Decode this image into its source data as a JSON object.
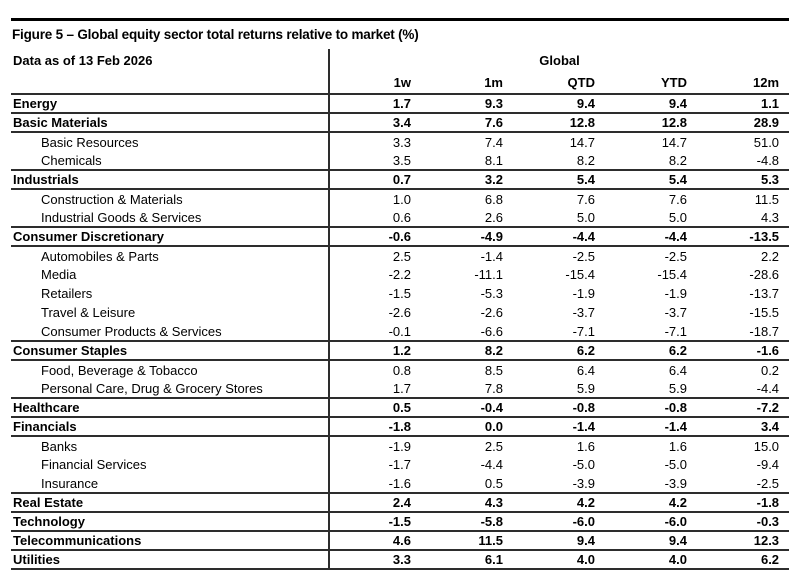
{
  "figure": {
    "title": "Figure 5 – Global equity sector total returns relative to market (%)",
    "data_as_of": "Data as of 13 Feb 2026",
    "region_header": "Global"
  },
  "colors": {
    "text": "#000000",
    "rule": "#2d2d2d",
    "background": "#ffffff"
  },
  "table": {
    "columns": [
      "1w",
      "1m",
      "QTD",
      "YTD",
      "12m"
    ],
    "rows": [
      {
        "label": "Energy",
        "level": "sector",
        "values": [
          "1.7",
          "9.3",
          "9.4",
          "9.4",
          "1.1"
        ]
      },
      {
        "label": "Basic Materials",
        "level": "sector",
        "values": [
          "3.4",
          "7.6",
          "12.8",
          "12.8",
          "28.9"
        ]
      },
      {
        "label": "Basic Resources",
        "level": "sub",
        "values": [
          "3.3",
          "7.4",
          "14.7",
          "14.7",
          "51.0"
        ]
      },
      {
        "label": "Chemicals",
        "level": "sub",
        "values": [
          "3.5",
          "8.1",
          "8.2",
          "8.2",
          "-4.8"
        ]
      },
      {
        "label": "Industrials",
        "level": "sector",
        "values": [
          "0.7",
          "3.2",
          "5.4",
          "5.4",
          "5.3"
        ]
      },
      {
        "label": "Construction & Materials",
        "level": "sub",
        "values": [
          "1.0",
          "6.8",
          "7.6",
          "7.6",
          "11.5"
        ]
      },
      {
        "label": "Industrial Goods & Services",
        "level": "sub",
        "values": [
          "0.6",
          "2.6",
          "5.0",
          "5.0",
          "4.3"
        ]
      },
      {
        "label": "Consumer Discretionary",
        "level": "sector",
        "values": [
          "-0.6",
          "-4.9",
          "-4.4",
          "-4.4",
          "-13.5"
        ]
      },
      {
        "label": "Automobiles & Parts",
        "level": "sub",
        "values": [
          "2.5",
          "-1.4",
          "-2.5",
          "-2.5",
          "2.2"
        ]
      },
      {
        "label": "Media",
        "level": "sub",
        "values": [
          "-2.2",
          "-11.1",
          "-15.4",
          "-15.4",
          "-28.6"
        ]
      },
      {
        "label": "Retailers",
        "level": "sub",
        "values": [
          "-1.5",
          "-5.3",
          "-1.9",
          "-1.9",
          "-13.7"
        ]
      },
      {
        "label": "Travel & Leisure",
        "level": "sub",
        "values": [
          "-2.6",
          "-2.6",
          "-3.7",
          "-3.7",
          "-15.5"
        ]
      },
      {
        "label": "Consumer Products & Services",
        "level": "sub",
        "values": [
          "-0.1",
          "-6.6",
          "-7.1",
          "-7.1",
          "-18.7"
        ]
      },
      {
        "label": "Consumer Staples",
        "level": "sector",
        "values": [
          "1.2",
          "8.2",
          "6.2",
          "6.2",
          "-1.6"
        ]
      },
      {
        "label": "Food, Beverage & Tobacco",
        "level": "sub",
        "values": [
          "0.8",
          "8.5",
          "6.4",
          "6.4",
          "0.2"
        ]
      },
      {
        "label": "Personal Care, Drug & Grocery Stores",
        "level": "sub",
        "values": [
          "1.7",
          "7.8",
          "5.9",
          "5.9",
          "-4.4"
        ]
      },
      {
        "label": "Healthcare",
        "level": "sector",
        "values": [
          "0.5",
          "-0.4",
          "-0.8",
          "-0.8",
          "-7.2"
        ]
      },
      {
        "label": "Financials",
        "level": "sector",
        "values": [
          "-1.8",
          "0.0",
          "-1.4",
          "-1.4",
          "3.4"
        ]
      },
      {
        "label": "Banks",
        "level": "sub",
        "values": [
          "-1.9",
          "2.5",
          "1.6",
          "1.6",
          "15.0"
        ]
      },
      {
        "label": "Financial Services",
        "level": "sub",
        "values": [
          "-1.7",
          "-4.4",
          "-5.0",
          "-5.0",
          "-9.4"
        ]
      },
      {
        "label": "Insurance",
        "level": "sub",
        "values": [
          "-1.6",
          "0.5",
          "-3.9",
          "-3.9",
          "-2.5"
        ]
      },
      {
        "label": "Real Estate",
        "level": "sector",
        "values": [
          "2.4",
          "4.3",
          "4.2",
          "4.2",
          "-1.8"
        ]
      },
      {
        "label": "Technology",
        "level": "sector",
        "values": [
          "-1.5",
          "-5.8",
          "-6.0",
          "-6.0",
          "-0.3"
        ]
      },
      {
        "label": "Telecommunications",
        "level": "sector",
        "values": [
          "4.6",
          "11.5",
          "9.4",
          "9.4",
          "12.3"
        ]
      },
      {
        "label": "Utilities",
        "level": "sector",
        "values": [
          "3.3",
          "6.1",
          "4.0",
          "4.0",
          "6.2"
        ]
      }
    ]
  }
}
